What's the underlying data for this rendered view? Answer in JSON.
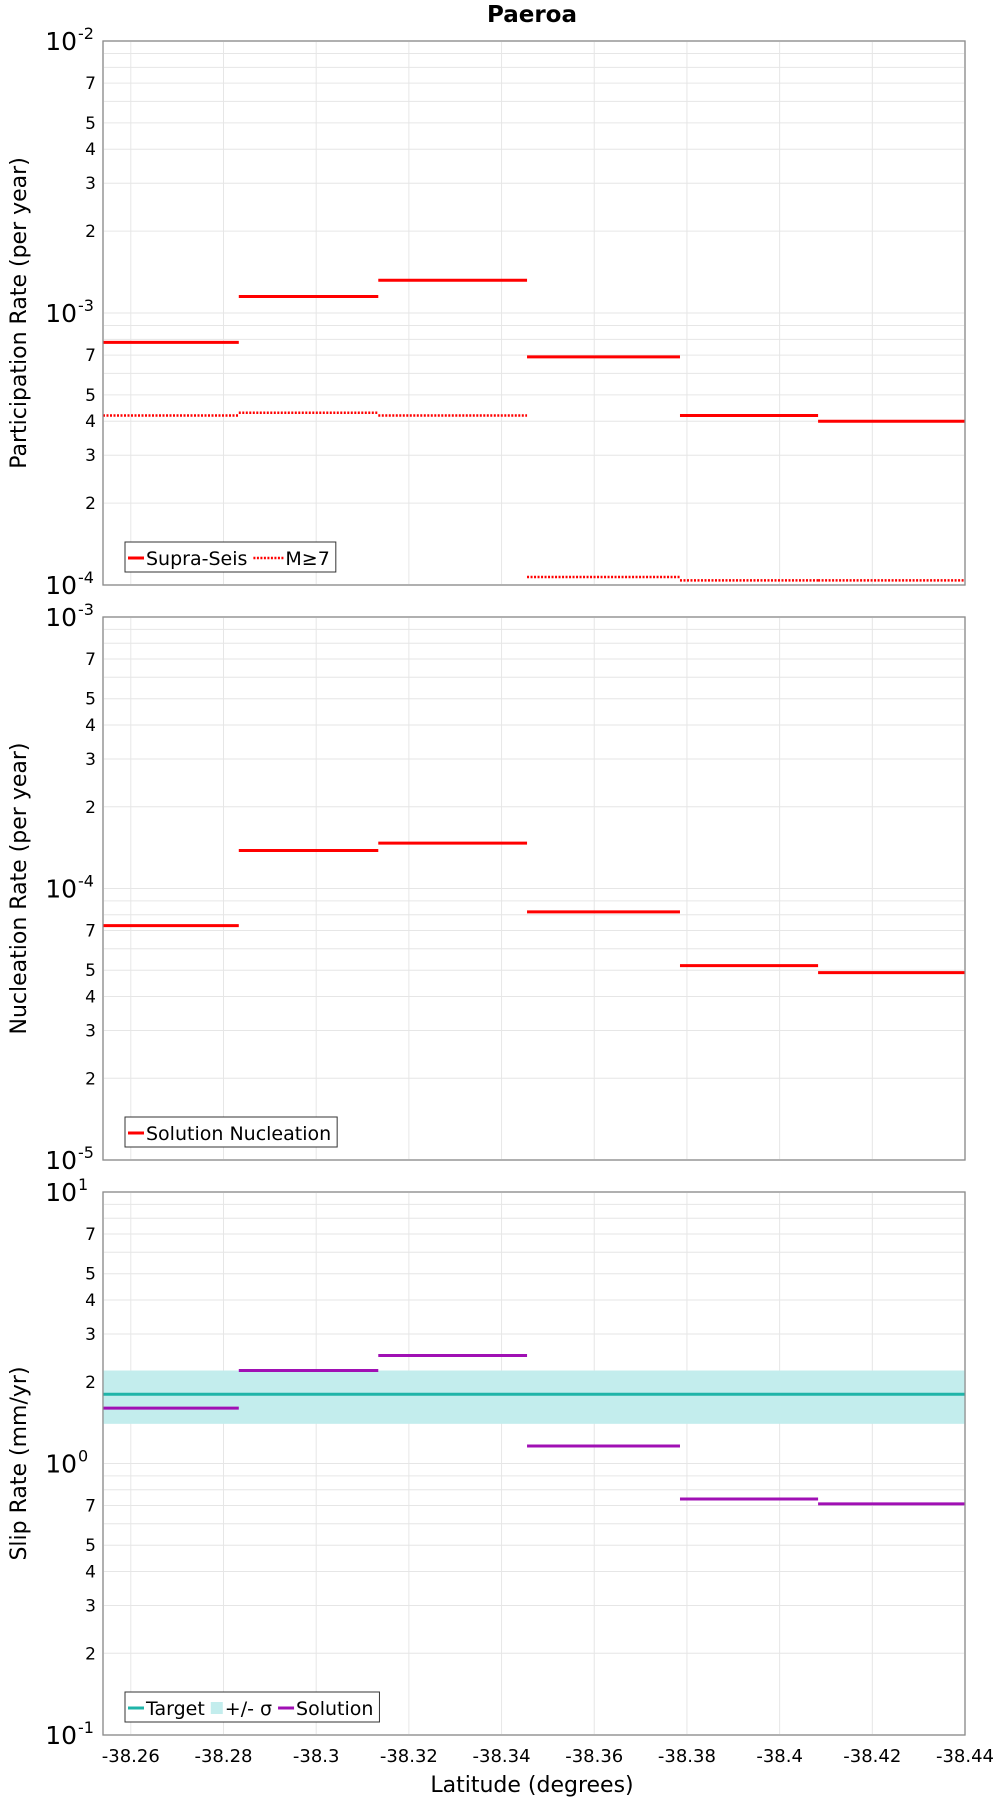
{
  "chart_data": [
    {
      "type": "line",
      "title": "Paeroa",
      "ylabel": "Participation Rate (per year)",
      "yscale": "log",
      "ylim": [
        0.0001,
        0.01
      ],
      "xlim": [
        -38.254,
        -38.44
      ],
      "legend": "bottom-left",
      "grid": true,
      "series": [
        {
          "name": "Supra-Seis",
          "color": "#ff0000",
          "style": "solid",
          "segments": [
            {
              "x0": -38.254,
              "x1": -38.2833,
              "y": 0.00078
            },
            {
              "x0": -38.2833,
              "x1": -38.3134,
              "y": 0.00115
            },
            {
              "x0": -38.3134,
              "x1": -38.3455,
              "y": 0.00132
            },
            {
              "x0": -38.3455,
              "x1": -38.3785,
              "y": 0.00069
            },
            {
              "x0": -38.3785,
              "x1": -38.4083,
              "y": 0.00042
            },
            {
              "x0": -38.4083,
              "x1": -38.44,
              "y": 0.0004
            }
          ]
        },
        {
          "name": "M≥7",
          "color": "#ff0000",
          "style": "dotted",
          "segments": [
            {
              "x0": -38.254,
              "x1": -38.2833,
              "y": 0.00042
            },
            {
              "x0": -38.2833,
              "x1": -38.3134,
              "y": 0.00043
            },
            {
              "x0": -38.3134,
              "x1": -38.3455,
              "y": 0.00042
            },
            {
              "x0": -38.3455,
              "x1": -38.3785,
              "y": 0.000107
            },
            {
              "x0": -38.3785,
              "x1": -38.4083,
              "y": 0.000104
            },
            {
              "x0": -38.4083,
              "x1": -38.44,
              "y": 0.000104
            }
          ]
        }
      ]
    },
    {
      "type": "line",
      "ylabel": "Nucleation Rate (per year)",
      "yscale": "log",
      "ylim": [
        1e-05,
        0.001
      ],
      "xlim": [
        -38.254,
        -38.44
      ],
      "legend": "bottom-left",
      "grid": true,
      "series": [
        {
          "name": "Solution Nucleation",
          "color": "#ff0000",
          "style": "solid",
          "segments": [
            {
              "x0": -38.254,
              "x1": -38.2833,
              "y": 7.3e-05
            },
            {
              "x0": -38.2833,
              "x1": -38.3134,
              "y": 0.000138
            },
            {
              "x0": -38.3134,
              "x1": -38.3455,
              "y": 0.000147
            },
            {
              "x0": -38.3455,
              "x1": -38.3785,
              "y": 8.2e-05
            },
            {
              "x0": -38.3785,
              "x1": -38.4083,
              "y": 5.2e-05
            },
            {
              "x0": -38.4083,
              "x1": -38.44,
              "y": 4.9e-05
            }
          ]
        }
      ]
    },
    {
      "type": "line",
      "ylabel": "Slip Rate (mm/yr)",
      "xlabel": "Latitude (degrees)",
      "yscale": "log",
      "ylim": [
        0.1,
        10
      ],
      "xlim": [
        -38.254,
        -38.44
      ],
      "xticks": [
        -38.26,
        -38.28,
        -38.3,
        -38.32,
        -38.34,
        -38.36,
        -38.38,
        -38.4,
        -38.42,
        -38.44
      ],
      "xtick_labels": [
        "-38.26",
        "-38.28",
        "-38.3",
        "-38.32",
        "-38.34",
        "-38.36",
        "-38.38",
        "-38.4",
        "-38.42",
        "-38.44"
      ],
      "legend": "bottom-left",
      "grid": true,
      "band": {
        "name": "+/- σ",
        "color": "#c3eded",
        "y_low": 1.4,
        "y_high": 2.2
      },
      "series": [
        {
          "name": "Target",
          "color": "#1fb4a8",
          "style": "solid",
          "segments": [
            {
              "x0": -38.254,
              "x1": -38.44,
              "y": 1.8
            }
          ]
        },
        {
          "name": "Solution",
          "color": "#a010b4",
          "style": "solid",
          "segments": [
            {
              "x0": -38.254,
              "x1": -38.2833,
              "y": 1.6
            },
            {
              "x0": -38.2833,
              "x1": -38.3134,
              "y": 2.2
            },
            {
              "x0": -38.3134,
              "x1": -38.3455,
              "y": 2.5
            },
            {
              "x0": -38.3455,
              "x1": -38.3785,
              "y": 1.16
            },
            {
              "x0": -38.3785,
              "x1": -38.4083,
              "y": 0.74
            },
            {
              "x0": -38.4083,
              "x1": -38.44,
              "y": 0.71
            }
          ]
        }
      ]
    }
  ]
}
